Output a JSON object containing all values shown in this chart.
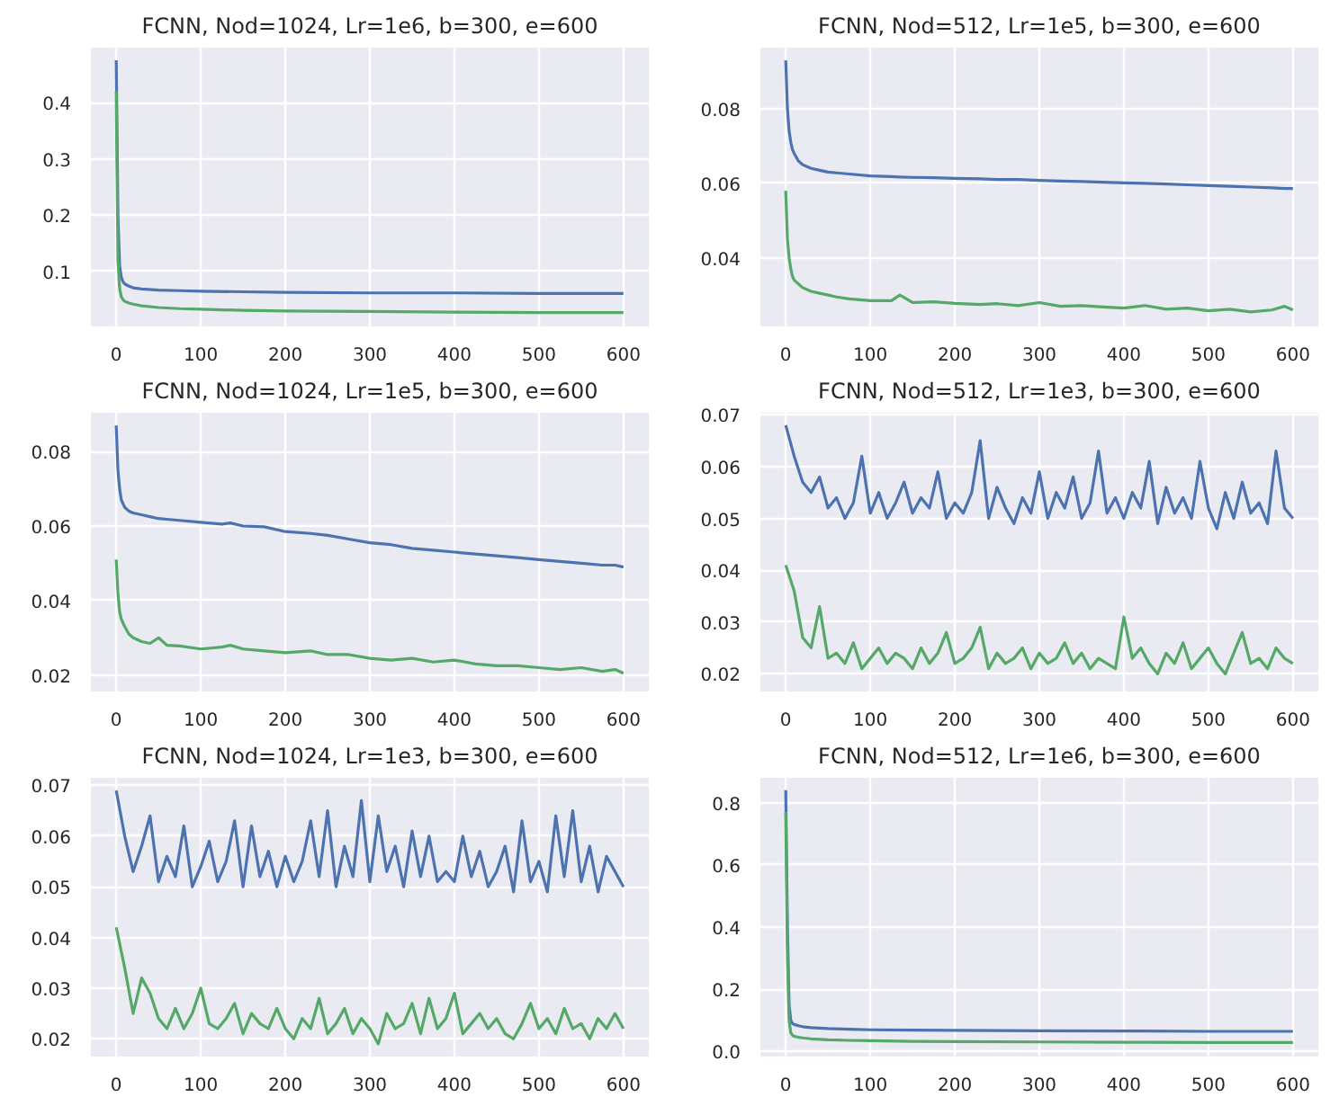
{
  "chart_data": [
    {
      "type": "line",
      "title": "FCNN, Nod=1024, Lr=1e6, b=300, e=600",
      "grid": true,
      "xlim": [
        -30,
        630
      ],
      "xticks": [
        0,
        100,
        200,
        300,
        400,
        500,
        600
      ],
      "ylim": [
        0.0025,
        0.4975
      ],
      "yticks": [
        0.1,
        0.2,
        0.3,
        0.4
      ],
      "x": [
        0,
        2,
        4,
        6,
        8,
        10,
        15,
        20,
        30,
        50,
        75,
        100,
        150,
        200,
        300,
        400,
        500,
        600
      ],
      "series": [
        {
          "color": "#4c72b0",
          "values": [
            0.475,
            0.2,
            0.11,
            0.09,
            0.082,
            0.078,
            0.074,
            0.071,
            0.069,
            0.067,
            0.066,
            0.065,
            0.064,
            0.063,
            0.062,
            0.062,
            0.061,
            0.061
          ]
        },
        {
          "color": "#55a868",
          "values": [
            0.42,
            0.12,
            0.07,
            0.055,
            0.05,
            0.047,
            0.044,
            0.042,
            0.039,
            0.036,
            0.034,
            0.033,
            0.031,
            0.03,
            0.029,
            0.028,
            0.027,
            0.027
          ]
        }
      ]
    },
    {
      "type": "line",
      "title": "FCNN, Nod=512, Lr=1e5, b=300, e=600",
      "grid": true,
      "xlim": [
        -30,
        630
      ],
      "xticks": [
        0,
        100,
        200,
        300,
        400,
        500,
        600
      ],
      "ylim": [
        0.0216,
        0.0964
      ],
      "yticks": [
        0.04,
        0.06,
        0.08
      ],
      "x": [
        0,
        2,
        4,
        6,
        8,
        10,
        15,
        20,
        30,
        40,
        50,
        60,
        75,
        100,
        125,
        135,
        150,
        175,
        200,
        230,
        250,
        275,
        300,
        325,
        350,
        375,
        400,
        425,
        450,
        475,
        500,
        525,
        550,
        575,
        590,
        600
      ],
      "series": [
        {
          "color": "#4c72b0",
          "values": [
            0.093,
            0.08,
            0.074,
            0.071,
            0.069,
            0.068,
            0.066,
            0.065,
            0.064,
            0.0635,
            0.063,
            0.0628,
            0.0625,
            0.062,
            0.0618,
            0.0617,
            0.0616,
            0.0615,
            0.0613,
            0.0612,
            0.061,
            0.061,
            0.0608,
            0.0606,
            0.0605,
            0.0603,
            0.0601,
            0.06,
            0.0598,
            0.0596,
            0.0594,
            0.0592,
            0.059,
            0.0588,
            0.0586,
            0.0586
          ]
        },
        {
          "color": "#55a868",
          "values": [
            0.058,
            0.045,
            0.04,
            0.037,
            0.035,
            0.034,
            0.033,
            0.032,
            0.031,
            0.0305,
            0.03,
            0.0295,
            0.029,
            0.0285,
            0.0285,
            0.03,
            0.028,
            0.0282,
            0.0278,
            0.0275,
            0.0277,
            0.0272,
            0.028,
            0.027,
            0.0272,
            0.0268,
            0.0265,
            0.0272,
            0.0262,
            0.0265,
            0.0258,
            0.0262,
            0.0255,
            0.026,
            0.027,
            0.026
          ]
        }
      ]
    },
    {
      "type": "line",
      "title": "FCNN, Nod=1024, Lr=1e5, b=300, e=600",
      "grid": true,
      "xlim": [
        -30,
        630
      ],
      "xticks": [
        0,
        100,
        200,
        300,
        400,
        500,
        600
      ],
      "ylim": [
        0.0156,
        0.0904
      ],
      "yticks": [
        0.02,
        0.04,
        0.06,
        0.08
      ],
      "x": [
        0,
        2,
        4,
        6,
        8,
        10,
        15,
        20,
        30,
        40,
        50,
        60,
        75,
        100,
        125,
        135,
        150,
        175,
        200,
        230,
        250,
        275,
        300,
        325,
        350,
        375,
        400,
        425,
        450,
        475,
        500,
        525,
        550,
        575,
        590,
        600
      ],
      "series": [
        {
          "color": "#4c72b0",
          "values": [
            0.087,
            0.075,
            0.07,
            0.067,
            0.066,
            0.065,
            0.064,
            0.0635,
            0.063,
            0.0625,
            0.062,
            0.0618,
            0.0615,
            0.061,
            0.0605,
            0.0608,
            0.06,
            0.0598,
            0.0585,
            0.058,
            0.0575,
            0.0565,
            0.0555,
            0.055,
            0.054,
            0.0535,
            0.053,
            0.0525,
            0.052,
            0.0515,
            0.051,
            0.0505,
            0.05,
            0.0495,
            0.0495,
            0.049
          ]
        },
        {
          "color": "#55a868",
          "values": [
            0.051,
            0.042,
            0.037,
            0.035,
            0.034,
            0.033,
            0.031,
            0.03,
            0.029,
            0.0285,
            0.03,
            0.028,
            0.0278,
            0.027,
            0.0275,
            0.028,
            0.027,
            0.0265,
            0.026,
            0.0265,
            0.0255,
            0.0255,
            0.0245,
            0.024,
            0.0245,
            0.0235,
            0.024,
            0.023,
            0.0225,
            0.0225,
            0.022,
            0.0215,
            0.022,
            0.021,
            0.0215,
            0.0205
          ]
        }
      ]
    },
    {
      "type": "line",
      "title": "FCNN, Nod=512, Lr=1e3, b=300, e=600",
      "grid": true,
      "xlim": [
        -30,
        630
      ],
      "xticks": [
        0,
        100,
        200,
        300,
        400,
        500,
        600
      ],
      "ylim": [
        0.0166,
        0.0704
      ],
      "yticks": [
        0.02,
        0.03,
        0.04,
        0.05,
        0.06,
        0.07
      ],
      "x": [
        0,
        10,
        20,
        30,
        40,
        50,
        60,
        70,
        80,
        90,
        100,
        110,
        120,
        130,
        140,
        150,
        160,
        170,
        180,
        190,
        200,
        210,
        220,
        230,
        240,
        250,
        260,
        270,
        280,
        290,
        300,
        310,
        320,
        330,
        340,
        350,
        360,
        370,
        380,
        390,
        400,
        410,
        420,
        430,
        440,
        450,
        460,
        470,
        480,
        490,
        500,
        510,
        520,
        530,
        540,
        550,
        560,
        570,
        580,
        590,
        600
      ],
      "series": [
        {
          "color": "#4c72b0",
          "values": [
            0.068,
            0.062,
            0.057,
            0.055,
            0.058,
            0.052,
            0.054,
            0.05,
            0.053,
            0.062,
            0.051,
            0.055,
            0.05,
            0.053,
            0.057,
            0.051,
            0.054,
            0.052,
            0.059,
            0.05,
            0.053,
            0.051,
            0.055,
            0.065,
            0.05,
            0.056,
            0.052,
            0.049,
            0.054,
            0.051,
            0.059,
            0.05,
            0.055,
            0.052,
            0.058,
            0.05,
            0.053,
            0.063,
            0.051,
            0.054,
            0.05,
            0.055,
            0.052,
            0.061,
            0.049,
            0.056,
            0.051,
            0.054,
            0.05,
            0.061,
            0.052,
            0.048,
            0.055,
            0.05,
            0.057,
            0.051,
            0.053,
            0.049,
            0.063,
            0.052,
            0.05
          ]
        },
        {
          "color": "#55a868",
          "values": [
            0.041,
            0.036,
            0.027,
            0.025,
            0.033,
            0.023,
            0.024,
            0.022,
            0.026,
            0.021,
            0.023,
            0.025,
            0.022,
            0.024,
            0.023,
            0.021,
            0.025,
            0.022,
            0.024,
            0.028,
            0.022,
            0.023,
            0.025,
            0.029,
            0.021,
            0.024,
            0.022,
            0.023,
            0.025,
            0.021,
            0.024,
            0.022,
            0.023,
            0.026,
            0.022,
            0.024,
            0.021,
            0.023,
            0.022,
            0.021,
            0.031,
            0.023,
            0.025,
            0.022,
            0.02,
            0.024,
            0.022,
            0.026,
            0.021,
            0.023,
            0.025,
            0.022,
            0.02,
            0.024,
            0.028,
            0.022,
            0.023,
            0.021,
            0.025,
            0.023,
            0.022
          ]
        }
      ]
    },
    {
      "type": "line",
      "title": "FCNN, Nod=1024, Lr=1e3, b=300, e=600",
      "grid": true,
      "xlim": [
        -30,
        630
      ],
      "xticks": [
        0,
        100,
        200,
        300,
        400,
        500,
        600
      ],
      "ylim": [
        0.0165,
        0.0715
      ],
      "yticks": [
        0.02,
        0.03,
        0.04,
        0.05,
        0.06,
        0.07
      ],
      "x": [
        0,
        10,
        20,
        30,
        40,
        50,
        60,
        70,
        80,
        90,
        100,
        110,
        120,
        130,
        140,
        150,
        160,
        170,
        180,
        190,
        200,
        210,
        220,
        230,
        240,
        250,
        260,
        270,
        280,
        290,
        300,
        310,
        320,
        330,
        340,
        350,
        360,
        370,
        380,
        390,
        400,
        410,
        420,
        430,
        440,
        450,
        460,
        470,
        480,
        490,
        500,
        510,
        520,
        530,
        540,
        550,
        560,
        570,
        580,
        590,
        600
      ],
      "series": [
        {
          "color": "#4c72b0",
          "values": [
            0.069,
            0.06,
            0.053,
            0.058,
            0.064,
            0.051,
            0.056,
            0.052,
            0.062,
            0.05,
            0.054,
            0.059,
            0.051,
            0.055,
            0.063,
            0.05,
            0.062,
            0.052,
            0.057,
            0.05,
            0.056,
            0.051,
            0.055,
            0.063,
            0.052,
            0.065,
            0.05,
            0.058,
            0.052,
            0.067,
            0.051,
            0.064,
            0.053,
            0.058,
            0.05,
            0.061,
            0.052,
            0.06,
            0.051,
            0.053,
            0.051,
            0.06,
            0.052,
            0.057,
            0.05,
            0.053,
            0.058,
            0.049,
            0.063,
            0.051,
            0.055,
            0.049,
            0.064,
            0.052,
            0.065,
            0.051,
            0.058,
            0.049,
            0.056,
            0.053,
            0.05
          ]
        },
        {
          "color": "#55a868",
          "values": [
            0.042,
            0.034,
            0.025,
            0.032,
            0.029,
            0.024,
            0.022,
            0.026,
            0.022,
            0.025,
            0.03,
            0.023,
            0.022,
            0.024,
            0.027,
            0.021,
            0.025,
            0.023,
            0.022,
            0.026,
            0.022,
            0.02,
            0.024,
            0.022,
            0.028,
            0.021,
            0.023,
            0.026,
            0.021,
            0.024,
            0.022,
            0.019,
            0.025,
            0.022,
            0.023,
            0.027,
            0.021,
            0.028,
            0.022,
            0.024,
            0.029,
            0.021,
            0.023,
            0.025,
            0.022,
            0.024,
            0.021,
            0.02,
            0.023,
            0.027,
            0.022,
            0.024,
            0.021,
            0.026,
            0.022,
            0.023,
            0.02,
            0.024,
            0.022,
            0.025,
            0.022
          ]
        }
      ]
    },
    {
      "type": "line",
      "title": "FCNN, Nod=512, Lr=1e6, b=300, e=600",
      "grid": true,
      "xlim": [
        -30,
        630
      ],
      "xticks": [
        0,
        100,
        200,
        300,
        400,
        500,
        600
      ],
      "ylim": [
        -0.016,
        0.88
      ],
      "yticks": [
        {
          "value": 0,
          "label": "0.0"
        },
        0.2,
        0.4,
        0.6,
        0.8
      ],
      "x": [
        0,
        2,
        4,
        6,
        8,
        10,
        15,
        20,
        30,
        50,
        75,
        100,
        150,
        200,
        300,
        400,
        500,
        600
      ],
      "series": [
        {
          "color": "#4c72b0",
          "values": [
            0.84,
            0.4,
            0.15,
            0.1,
            0.09,
            0.087,
            0.083,
            0.08,
            0.077,
            0.074,
            0.072,
            0.07,
            0.069,
            0.068,
            0.067,
            0.066,
            0.065,
            0.065
          ]
        },
        {
          "color": "#55a868",
          "values": [
            0.77,
            0.3,
            0.1,
            0.06,
            0.052,
            0.049,
            0.046,
            0.044,
            0.041,
            0.038,
            0.036,
            0.035,
            0.033,
            0.032,
            0.031,
            0.03,
            0.029,
            0.029
          ]
        }
      ]
    }
  ]
}
